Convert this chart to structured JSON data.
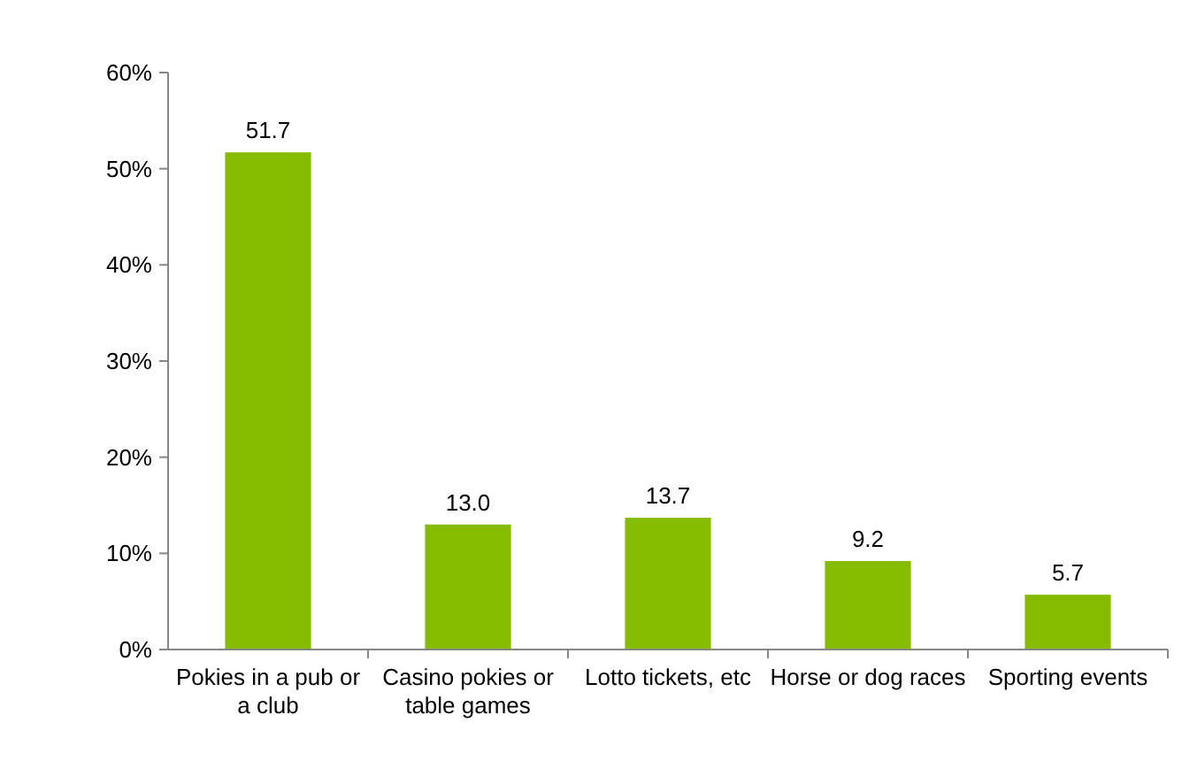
{
  "chart_data": {
    "type": "bar",
    "categories": [
      "Pokies in a pub or a club",
      "Casino pokies or table games",
      "Lotto tickets, etc",
      "Horse or dog races",
      "Sporting events"
    ],
    "values": [
      51.7,
      13.0,
      13.7,
      9.2,
      5.7
    ],
    "value_labels": [
      "51.7",
      "13.0",
      "13.7",
      "9.2",
      "5.7"
    ],
    "color": "#85bc00",
    "ylim": [
      0,
      60
    ],
    "yticks": [
      {
        "value": 0,
        "label": "0%"
      },
      {
        "value": 10,
        "label": "10%"
      },
      {
        "value": 20,
        "label": "20%"
      },
      {
        "value": 30,
        "label": "30%"
      },
      {
        "value": 40,
        "label": "40%"
      },
      {
        "value": 50,
        "label": "50%"
      },
      {
        "value": 60,
        "label": "60%"
      }
    ],
    "grid": false
  }
}
